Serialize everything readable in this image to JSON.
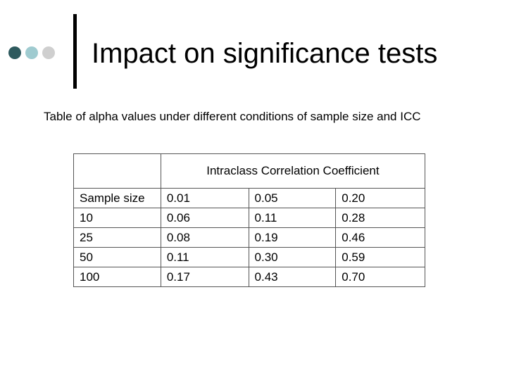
{
  "slide": {
    "title": "Impact on significance tests",
    "subtitle": "Table of alpha values under different conditions of sample size and ICC"
  },
  "table": {
    "group_header": "Intraclass Correlation Coefficient",
    "columns": [
      "Sample size",
      "0.01",
      "0.05",
      "0.20"
    ],
    "rows": [
      [
        "10",
        "0.06",
        "0.11",
        "0.28"
      ],
      [
        "25",
        "0.08",
        "0.19",
        "0.46"
      ],
      [
        "50",
        "0.11",
        "0.30",
        "0.59"
      ],
      [
        "100",
        "0.17",
        "0.43",
        "0.70"
      ]
    ]
  }
}
